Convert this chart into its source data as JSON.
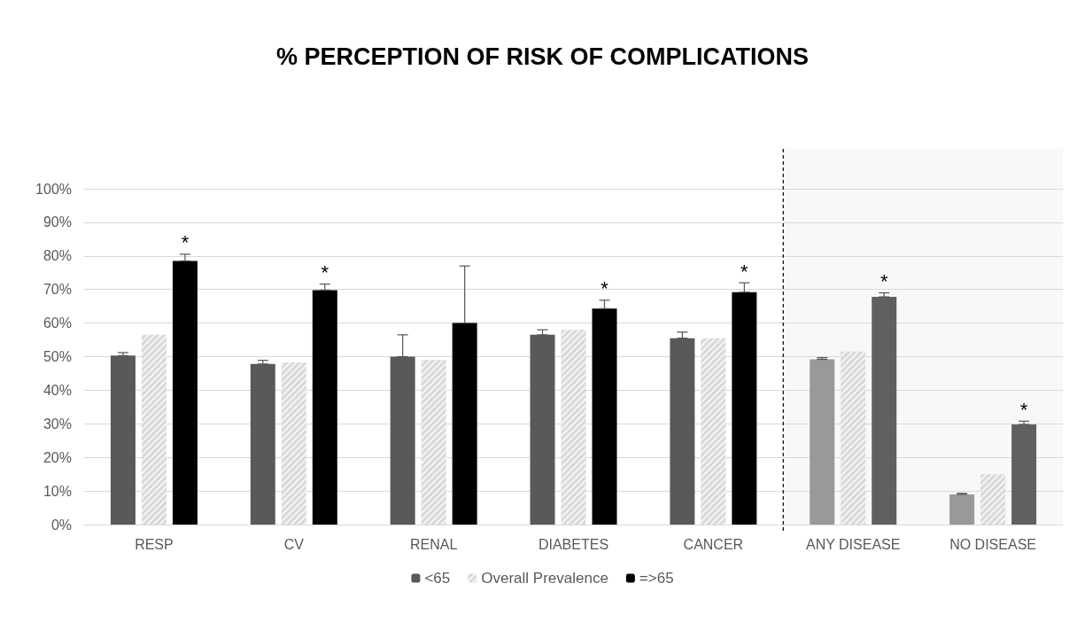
{
  "chart_data": {
    "type": "bar",
    "title": "% PERCEPTION OF RISK OF COMPLICATIONS",
    "categories": [
      "RESP",
      "CV",
      "RENAL",
      "DIABETES",
      "CANCER",
      "ANY DISEASE",
      "NO DISEASE"
    ],
    "series": [
      {
        "name": "<65",
        "color": "#595959",
        "colors": [
          "#595959",
          "#595959",
          "#595959",
          "#595959",
          "#595959",
          "#999999",
          "#999999"
        ],
        "values": [
          50.3,
          47.8,
          50,
          56.5,
          55.5,
          49.2,
          9
        ],
        "errors": [
          [
            50.3,
            51.2
          ],
          [
            47.8,
            48.9
          ],
          [
            50,
            56.5
          ],
          [
            56.5,
            58
          ],
          [
            55.5,
            57.3
          ],
          [
            49.2,
            49.7
          ],
          [
            9,
            9.3
          ]
        ]
      },
      {
        "name": "Overall Prevalence",
        "color": "#d9d9d9",
        "values": [
          56.5,
          48.3,
          49,
          58,
          55.5,
          51.5,
          15
        ]
      },
      {
        "name": "=>65",
        "color": "#000000",
        "colors": [
          "#000000",
          "#000000",
          "#000000",
          "#000000",
          "#000000",
          "#606060",
          "#606060"
        ],
        "values": [
          78.5,
          69.8,
          60,
          64.3,
          69.2,
          67.8,
          29.8
        ],
        "errors": [
          [
            78.5,
            80.5
          ],
          [
            69.8,
            71.6
          ],
          [
            60,
            77
          ],
          [
            64.3,
            66.8
          ],
          [
            69.2,
            72
          ],
          [
            67.8,
            69
          ],
          [
            29.8,
            30.8
          ]
        ],
        "value_labels": [
          "*",
          "*",
          null,
          "*",
          "*",
          "*",
          "*"
        ]
      }
    ],
    "ylim": [
      0,
      100
    ],
    "yticks": [
      {
        "value": 0,
        "label": "0%"
      },
      {
        "value": 10,
        "label": "10%"
      },
      {
        "value": 20,
        "label": "20%"
      },
      {
        "value": 30,
        "label": "30%"
      },
      {
        "value": 40,
        "label": "40%"
      },
      {
        "value": 50,
        "label": "50%"
      },
      {
        "value": 60,
        "label": "60%"
      },
      {
        "value": 70,
        "label": "70%"
      },
      {
        "value": 80,
        "label": "80%"
      },
      {
        "value": 90,
        "label": "90%"
      },
      {
        "value": 100,
        "label": "100%"
      }
    ],
    "bands": [
      {
        "axis": "x",
        "from": "ANY DISEASE",
        "to": "NO DISEASE",
        "color": "#f8f8f8"
      }
    ],
    "ref_lines": [
      {
        "axis": "x",
        "value": "ANY DISEASE",
        "line_style": "dashed",
        "color": "#000000"
      }
    ],
    "grid": "y",
    "legend": "bottom"
  }
}
